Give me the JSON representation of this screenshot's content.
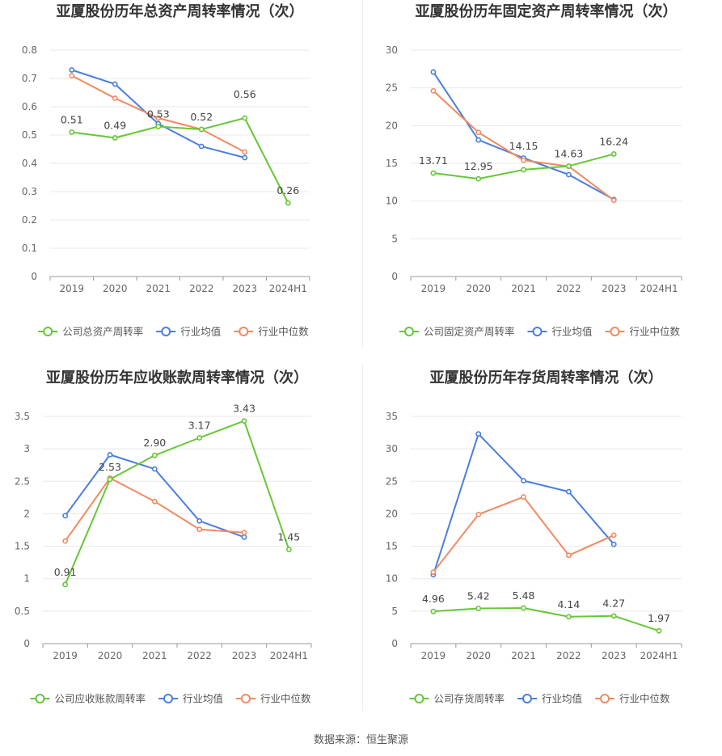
{
  "colors": {
    "company": "#66c737",
    "industry_avg": "#4a7ee0",
    "industry_median": "#f28a60",
    "grid": "#e8e8e8",
    "axis": "#999999"
  },
  "source": "数据来源：恒生聚源",
  "legend": {
    "industry_avg": "行业均值",
    "industry_median": "行业中位数"
  },
  "chart_data": [
    {
      "type": "line",
      "title": "亚厦股份历年总资产周转率情况（次）",
      "categories": [
        "2019",
        "2020",
        "2021",
        "2022",
        "2023",
        "2024H1"
      ],
      "ylim": [
        0,
        0.8
      ],
      "yticks": [
        "0",
        "0.1",
        "0.2",
        "0.3",
        "0.4",
        "0.5",
        "0.6",
        "0.7",
        "0.8"
      ],
      "ytick_values": [
        0,
        0.1,
        0.2,
        0.3,
        0.4,
        0.5,
        0.6,
        0.7,
        0.8
      ],
      "grid": true,
      "legend_position": "bottom",
      "series": [
        {
          "name": "公司总资产周转率",
          "key": "company",
          "values": [
            0.51,
            0.49,
            0.53,
            0.52,
            0.56,
            0.26
          ],
          "labels": [
            "0.51",
            "0.49",
            "0.53",
            "0.52",
            "0.56",
            "0.26"
          ]
        },
        {
          "name": "行业均值",
          "key": "industry_avg",
          "values": [
            0.73,
            0.68,
            0.54,
            0.46,
            0.42,
            null
          ]
        },
        {
          "name": "行业中位数",
          "key": "industry_median",
          "values": [
            0.71,
            0.63,
            0.56,
            0.52,
            0.44,
            null
          ]
        }
      ]
    },
    {
      "type": "line",
      "title": "亚厦股份历年固定资产周转率情况（次）",
      "categories": [
        "2019",
        "2020",
        "2021",
        "2022",
        "2023",
        "2024H1"
      ],
      "ylim": [
        0,
        30
      ],
      "yticks": [
        "0",
        "5",
        "10",
        "15",
        "20",
        "25",
        "30"
      ],
      "ytick_values": [
        0,
        5,
        10,
        15,
        20,
        25,
        30
      ],
      "grid": true,
      "legend_position": "bottom",
      "series": [
        {
          "name": "公司固定资产周转率",
          "key": "company",
          "values": [
            13.71,
            12.95,
            14.15,
            14.63,
            16.24,
            null
          ],
          "labels": [
            "13.71",
            "12.95",
            "14.15",
            "14.63",
            "16.24",
            ""
          ]
        },
        {
          "name": "行业均值",
          "key": "industry_avg",
          "values": [
            27.1,
            18.1,
            15.7,
            13.5,
            10.2,
            null
          ]
        },
        {
          "name": "行业中位数",
          "key": "industry_median",
          "values": [
            24.6,
            19.1,
            15.4,
            14.6,
            10.1,
            null
          ]
        }
      ]
    },
    {
      "type": "line",
      "title": "亚厦股份历年应收账款周转率情况（次）",
      "categories": [
        "2019",
        "2020",
        "2021",
        "2022",
        "2023",
        "2024H1"
      ],
      "ylim": [
        0,
        3.5
      ],
      "yticks": [
        "0",
        "0.5",
        "1",
        "1.5",
        "2",
        "2.5",
        "3",
        "3.5"
      ],
      "ytick_values": [
        0,
        0.5,
        1,
        1.5,
        2,
        2.5,
        3,
        3.5
      ],
      "grid": true,
      "legend_position": "bottom",
      "series": [
        {
          "name": "公司应收账款周转率",
          "key": "company",
          "values": [
            0.91,
            2.53,
            2.9,
            3.17,
            3.43,
            1.45
          ],
          "labels": [
            "0.91",
            "2.53",
            "2.90",
            "3.17",
            "3.43",
            "1.45"
          ]
        },
        {
          "name": "行业均值",
          "key": "industry_avg",
          "values": [
            1.97,
            2.91,
            2.69,
            1.89,
            1.64,
            null
          ]
        },
        {
          "name": "行业中位数",
          "key": "industry_median",
          "values": [
            1.58,
            2.55,
            2.19,
            1.76,
            1.71,
            null
          ]
        }
      ]
    },
    {
      "type": "line",
      "title": "亚厦股份历年存货周转率情况（次）",
      "categories": [
        "2019",
        "2020",
        "2021",
        "2022",
        "2023",
        "2024H1"
      ],
      "ylim": [
        0,
        35
      ],
      "yticks": [
        "0",
        "5",
        "10",
        "15",
        "20",
        "25",
        "30",
        "35"
      ],
      "ytick_values": [
        0,
        5,
        10,
        15,
        20,
        25,
        30,
        35
      ],
      "grid": true,
      "legend_position": "bottom",
      "series": [
        {
          "name": "公司存货周转率",
          "key": "company",
          "values": [
            4.96,
            5.42,
            5.48,
            4.14,
            4.27,
            1.97
          ],
          "labels": [
            "4.96",
            "5.42",
            "5.48",
            "4.14",
            "4.27",
            "1.97"
          ]
        },
        {
          "name": "行业均值",
          "key": "industry_avg",
          "values": [
            10.6,
            32.3,
            25.1,
            23.4,
            15.3,
            null
          ]
        },
        {
          "name": "行业中位数",
          "key": "industry_median",
          "values": [
            11.0,
            19.9,
            22.6,
            13.6,
            16.7,
            null
          ]
        }
      ]
    }
  ]
}
